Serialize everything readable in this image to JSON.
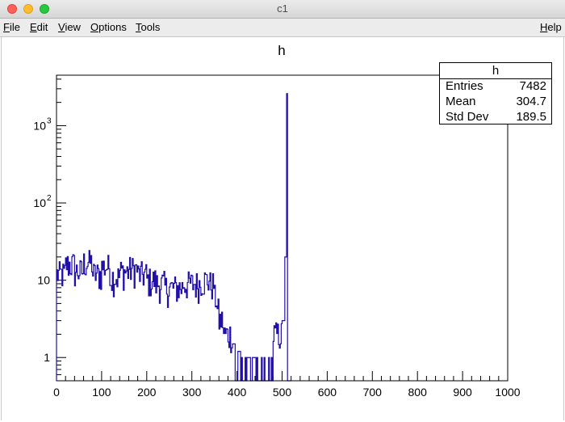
{
  "window": {
    "title": "c1",
    "traffic_lights": [
      "close",
      "minimize",
      "maximize"
    ]
  },
  "menubar": {
    "items": [
      {
        "label": "File",
        "mnemonic": "F",
        "rest": "ile"
      },
      {
        "label": "Edit",
        "mnemonic": "E",
        "rest": "dit"
      },
      {
        "label": "View",
        "mnemonic": "V",
        "rest": "iew"
      },
      {
        "label": "Options",
        "mnemonic": "O",
        "rest": "ptions"
      },
      {
        "label": "Tools",
        "mnemonic": "T",
        "rest": "ools"
      }
    ],
    "help": {
      "label": "Help",
      "mnemonic": "H",
      "rest": "elp"
    }
  },
  "stats_box": {
    "title": "h",
    "rows": [
      {
        "label": "Entries",
        "value": "7482"
      },
      {
        "label": "Mean",
        "value": "304.7"
      },
      {
        "label": "Std Dev",
        "value": "189.5"
      }
    ]
  },
  "chart_data": {
    "type": "histogram",
    "title": "h",
    "xlabel": "",
    "ylabel": "",
    "xlim": [
      0,
      1000
    ],
    "ylim": [
      0.5,
      4500
    ],
    "log_y": true,
    "grid": false,
    "line_color": "#2010a8",
    "x_ticks": [
      "0",
      "100",
      "200",
      "300",
      "400",
      "500",
      "600",
      "700",
      "800",
      "900",
      "1000"
    ],
    "y_ticks": [
      {
        "value": 1,
        "label": "1"
      },
      {
        "value": 10,
        "label": "10"
      },
      {
        "value": 100,
        "label": "10",
        "exp": "2"
      },
      {
        "value": 1000,
        "label": "10",
        "exp": "3"
      }
    ],
    "bin_width": 2,
    "bins": [
      {
        "x": 0,
        "value": 12
      },
      {
        "x": 20,
        "value": 16
      },
      {
        "x": 40,
        "value": 13
      },
      {
        "x": 60,
        "value": 17
      },
      {
        "x": 80,
        "value": 12
      },
      {
        "x": 100,
        "value": 15
      },
      {
        "x": 120,
        "value": 11
      },
      {
        "x": 140,
        "value": 13
      },
      {
        "x": 160,
        "value": 14
      },
      {
        "x": 180,
        "value": 12
      },
      {
        "x": 200,
        "value": 10
      },
      {
        "x": 220,
        "value": 9
      },
      {
        "x": 240,
        "value": 8
      },
      {
        "x": 260,
        "value": 8
      },
      {
        "x": 280,
        "value": 9
      },
      {
        "x": 300,
        "value": 9
      },
      {
        "x": 320,
        "value": 10
      },
      {
        "x": 340,
        "value": 9
      },
      {
        "x": 350,
        "value": 6
      },
      {
        "x": 356,
        "value": 4
      },
      {
        "x": 360,
        "value": 3
      },
      {
        "x": 370,
        "value": 2
      },
      {
        "x": 380,
        "value": 2
      },
      {
        "x": 390,
        "value": 1.5
      },
      {
        "x": 400,
        "value": 1.2
      },
      {
        "x": 410,
        "value": 1
      },
      {
        "x": 420,
        "value": 1
      },
      {
        "x": 430,
        "value": 1
      },
      {
        "x": 440,
        "value": 1
      },
      {
        "x": 460,
        "value": 1
      },
      {
        "x": 480,
        "value": 2
      },
      {
        "x": 490,
        "value": 2
      },
      {
        "x": 500,
        "value": 3
      },
      {
        "x": 506,
        "value": 20
      },
      {
        "x": 510,
        "value": 2600
      }
    ]
  }
}
